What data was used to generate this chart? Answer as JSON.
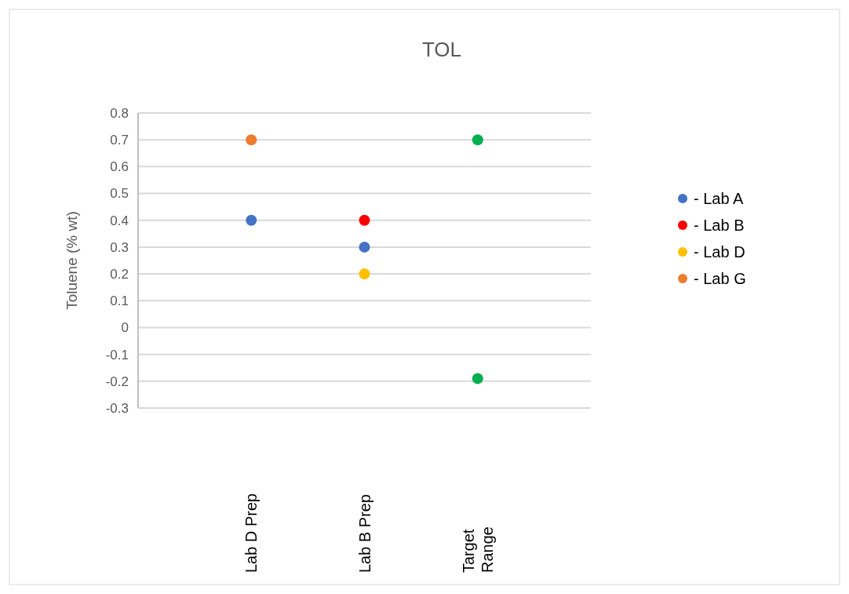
{
  "chart_data": {
    "type": "scatter",
    "title": "TOL",
    "ylabel": "Toluene (% wt)",
    "categories": [
      "Lab D Prep",
      "Lab B Prep",
      "Target Range"
    ],
    "series": [
      {
        "name": "- Lab A",
        "color": "#4472c4",
        "values": [
          0.4,
          0.3,
          null
        ]
      },
      {
        "name": "- Lab B",
        "color": "#ff0000",
        "values": [
          null,
          0.4,
          null
        ]
      },
      {
        "name": "- Lab D",
        "color": "#ffc000",
        "values": [
          null,
          0.2,
          null
        ]
      },
      {
        "name": "- Lab G",
        "color": "#ed7d31",
        "values": [
          0.7,
          null,
          null
        ]
      },
      {
        "color": "#00b050",
        "values": [
          null,
          null,
          0.7
        ]
      },
      {
        "color": "#00b050",
        "values": [
          null,
          null,
          -0.19
        ]
      }
    ],
    "ylim": [
      -0.3,
      0.8
    ],
    "yticks": [
      -0.3,
      -0.2,
      -0.1,
      0,
      0.1,
      0.2,
      0.3,
      0.4,
      0.5,
      0.6,
      0.7,
      0.8
    ],
    "grid": "y",
    "legend": "right",
    "marker": "circle"
  }
}
